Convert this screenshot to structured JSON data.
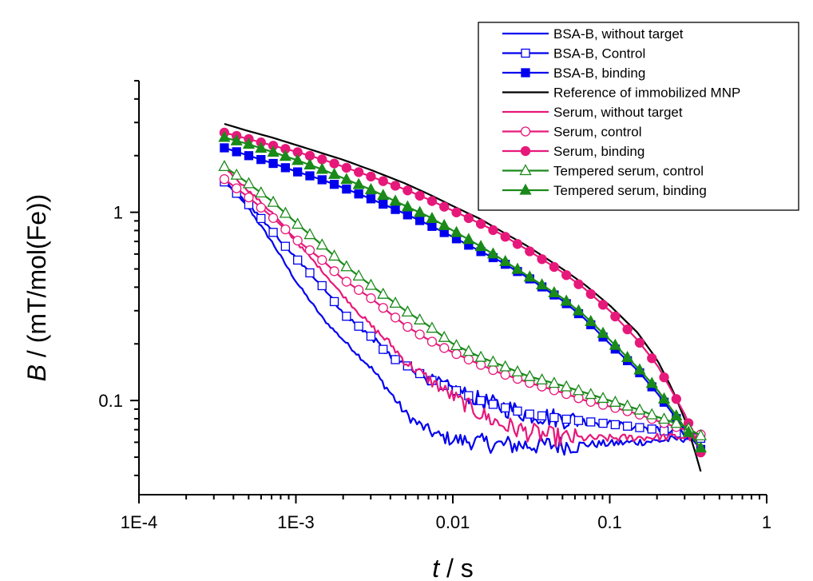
{
  "chart_data": {
    "type": "line",
    "xscale": "log",
    "yscale": "log",
    "xlim": [
      0.0001,
      1
    ],
    "ylim": [
      0.0316,
      5.0
    ],
    "xticks": [
      {
        "value": 0.0001,
        "label": "1E-4"
      },
      {
        "value": 0.001,
        "label": "1E-3"
      },
      {
        "value": 0.01,
        "label": "0.01"
      },
      {
        "value": 0.1,
        "label": "0.1"
      },
      {
        "value": 1,
        "label": "1"
      }
    ],
    "yticks": [
      {
        "value": 1,
        "label": "1"
      },
      {
        "value": 0.1,
        "label": "0.1"
      }
    ],
    "xlabel_italic": "t",
    "xlabel_rest": " / s",
    "ylabel_italic": "B",
    "ylabel_rest": " / (mT/mol(Fe))",
    "legend_position": "top-right",
    "grid": false,
    "series": [
      {
        "name": "BSA-B, without target",
        "color": "#0000ee",
        "marker": "none",
        "noisy": true,
        "points": [
          [
            0.00035,
            1.45
          ],
          [
            0.0005,
            1.05
          ],
          [
            0.0007,
            0.7
          ],
          [
            0.001,
            0.43
          ],
          [
            0.0015,
            0.27
          ],
          [
            0.002,
            0.21
          ],
          [
            0.003,
            0.15
          ],
          [
            0.004,
            0.11
          ],
          [
            0.005,
            0.085
          ],
          [
            0.006,
            0.075
          ],
          [
            0.008,
            0.065
          ],
          [
            0.01,
            0.062
          ],
          [
            0.015,
            0.06
          ],
          [
            0.02,
            0.058
          ],
          [
            0.03,
            0.058
          ],
          [
            0.05,
            0.058
          ],
          [
            0.1,
            0.059
          ],
          [
            0.2,
            0.061
          ],
          [
            0.3,
            0.063
          ],
          [
            0.38,
            0.064
          ]
        ]
      },
      {
        "name": "BSA-B, Control",
        "color": "#0000ee",
        "marker": "square-open",
        "noisy": true,
        "points": [
          [
            0.00035,
            1.45
          ],
          [
            0.0005,
            1.1
          ],
          [
            0.0007,
            0.8
          ],
          [
            0.001,
            0.57
          ],
          [
            0.0015,
            0.4
          ],
          [
            0.002,
            0.29
          ],
          [
            0.003,
            0.22
          ],
          [
            0.004,
            0.17
          ],
          [
            0.005,
            0.155
          ],
          [
            0.007,
            0.13
          ],
          [
            0.01,
            0.115
          ],
          [
            0.015,
            0.1
          ],
          [
            0.02,
            0.093
          ],
          [
            0.03,
            0.085
          ],
          [
            0.05,
            0.08
          ],
          [
            0.1,
            0.075
          ],
          [
            0.2,
            0.07
          ],
          [
            0.3,
            0.066
          ],
          [
            0.38,
            0.063
          ]
        ]
      },
      {
        "name": "BSA-B, binding",
        "color": "#0000ee",
        "marker": "square-filled",
        "noisy": false,
        "points": [
          [
            0.00035,
            2.2
          ],
          [
            0.0005,
            2.0
          ],
          [
            0.0007,
            1.83
          ],
          [
            0.001,
            1.65
          ],
          [
            0.0015,
            1.48
          ],
          [
            0.002,
            1.35
          ],
          [
            0.003,
            1.18
          ],
          [
            0.005,
            0.98
          ],
          [
            0.007,
            0.86
          ],
          [
            0.01,
            0.74
          ],
          [
            0.015,
            0.62
          ],
          [
            0.02,
            0.55
          ],
          [
            0.03,
            0.45
          ],
          [
            0.05,
            0.34
          ],
          [
            0.07,
            0.27
          ],
          [
            0.1,
            0.2
          ],
          [
            0.15,
            0.145
          ],
          [
            0.2,
            0.11
          ],
          [
            0.3,
            0.07
          ],
          [
            0.38,
            0.055
          ]
        ]
      },
      {
        "name": "Reference of immobilized MNP",
        "color": "#000000",
        "marker": "none",
        "noisy": false,
        "points": [
          [
            0.00035,
            2.95
          ],
          [
            0.0005,
            2.7
          ],
          [
            0.0007,
            2.5
          ],
          [
            0.001,
            2.28
          ],
          [
            0.0015,
            2.05
          ],
          [
            0.002,
            1.9
          ],
          [
            0.003,
            1.68
          ],
          [
            0.005,
            1.42
          ],
          [
            0.007,
            1.25
          ],
          [
            0.01,
            1.08
          ],
          [
            0.015,
            0.92
          ],
          [
            0.02,
            0.8
          ],
          [
            0.03,
            0.66
          ],
          [
            0.05,
            0.5
          ],
          [
            0.07,
            0.41
          ],
          [
            0.1,
            0.32
          ],
          [
            0.15,
            0.23
          ],
          [
            0.2,
            0.165
          ],
          [
            0.25,
            0.115
          ],
          [
            0.3,
            0.08
          ],
          [
            0.34,
            0.058
          ],
          [
            0.38,
            0.042
          ]
        ]
      },
      {
        "name": "Serum, without target",
        "color": "#e6197a",
        "marker": "none",
        "noisy": true,
        "points": [
          [
            0.00035,
            1.75
          ],
          [
            0.0005,
            1.3
          ],
          [
            0.0007,
            1.0
          ],
          [
            0.001,
            0.7
          ],
          [
            0.0015,
            0.48
          ],
          [
            0.002,
            0.36
          ],
          [
            0.003,
            0.25
          ],
          [
            0.004,
            0.2
          ],
          [
            0.005,
            0.16
          ],
          [
            0.007,
            0.13
          ],
          [
            0.01,
            0.105
          ],
          [
            0.015,
            0.085
          ],
          [
            0.02,
            0.075
          ],
          [
            0.03,
            0.068
          ],
          [
            0.05,
            0.063
          ],
          [
            0.1,
            0.063
          ],
          [
            0.2,
            0.064
          ],
          [
            0.3,
            0.064
          ],
          [
            0.38,
            0.063
          ]
        ]
      },
      {
        "name": "Serum, control",
        "color": "#e6197a",
        "marker": "circle-open",
        "noisy": false,
        "points": [
          [
            0.00035,
            1.5
          ],
          [
            0.0005,
            1.2
          ],
          [
            0.0007,
            0.95
          ],
          [
            0.001,
            0.72
          ],
          [
            0.0015,
            0.55
          ],
          [
            0.002,
            0.44
          ],
          [
            0.003,
            0.35
          ],
          [
            0.005,
            0.25
          ],
          [
            0.007,
            0.21
          ],
          [
            0.01,
            0.18
          ],
          [
            0.015,
            0.155
          ],
          [
            0.02,
            0.14
          ],
          [
            0.03,
            0.125
          ],
          [
            0.05,
            0.11
          ],
          [
            0.07,
            0.1
          ],
          [
            0.1,
            0.093
          ],
          [
            0.15,
            0.085
          ],
          [
            0.2,
            0.078
          ],
          [
            0.3,
            0.07
          ],
          [
            0.38,
            0.066
          ]
        ]
      },
      {
        "name": "Serum, binding",
        "color": "#e6197a",
        "marker": "circle-filled",
        "noisy": false,
        "points": [
          [
            0.00035,
            2.65
          ],
          [
            0.0005,
            2.45
          ],
          [
            0.0007,
            2.27
          ],
          [
            0.001,
            2.1
          ],
          [
            0.0015,
            1.9
          ],
          [
            0.002,
            1.75
          ],
          [
            0.003,
            1.55
          ],
          [
            0.005,
            1.32
          ],
          [
            0.007,
            1.17
          ],
          [
            0.01,
            1.02
          ],
          [
            0.015,
            0.87
          ],
          [
            0.02,
            0.77
          ],
          [
            0.03,
            0.63
          ],
          [
            0.05,
            0.48
          ],
          [
            0.07,
            0.39
          ],
          [
            0.1,
            0.3
          ],
          [
            0.15,
            0.21
          ],
          [
            0.2,
            0.155
          ],
          [
            0.3,
            0.085
          ],
          [
            0.38,
            0.053
          ]
        ]
      },
      {
        "name": "Tempered serum, control",
        "color": "#1a8a1a",
        "marker": "triangle-open",
        "noisy": false,
        "points": [
          [
            0.00035,
            1.75
          ],
          [
            0.0005,
            1.42
          ],
          [
            0.0007,
            1.15
          ],
          [
            0.001,
            0.88
          ],
          [
            0.0015,
            0.66
          ],
          [
            0.002,
            0.53
          ],
          [
            0.003,
            0.41
          ],
          [
            0.005,
            0.3
          ],
          [
            0.007,
            0.25
          ],
          [
            0.01,
            0.2
          ],
          [
            0.015,
            0.17
          ],
          [
            0.02,
            0.155
          ],
          [
            0.03,
            0.135
          ],
          [
            0.05,
            0.12
          ],
          [
            0.07,
            0.11
          ],
          [
            0.1,
            0.1
          ],
          [
            0.15,
            0.09
          ],
          [
            0.2,
            0.082
          ],
          [
            0.3,
            0.073
          ],
          [
            0.38,
            0.065
          ]
        ]
      },
      {
        "name": "Tempered serum, binding",
        "color": "#1a8a1a",
        "marker": "triangle-filled",
        "noisy": false,
        "points": [
          [
            0.00035,
            2.5
          ],
          [
            0.0005,
            2.3
          ],
          [
            0.0007,
            2.1
          ],
          [
            0.001,
            1.9
          ],
          [
            0.0015,
            1.68
          ],
          [
            0.002,
            1.52
          ],
          [
            0.003,
            1.32
          ],
          [
            0.005,
            1.08
          ],
          [
            0.007,
            0.95
          ],
          [
            0.01,
            0.8
          ],
          [
            0.015,
            0.66
          ],
          [
            0.02,
            0.57
          ],
          [
            0.03,
            0.46
          ],
          [
            0.05,
            0.35
          ],
          [
            0.07,
            0.28
          ],
          [
            0.1,
            0.21
          ],
          [
            0.15,
            0.15
          ],
          [
            0.2,
            0.115
          ],
          [
            0.3,
            0.072
          ],
          [
            0.38,
            0.056
          ]
        ]
      }
    ]
  }
}
